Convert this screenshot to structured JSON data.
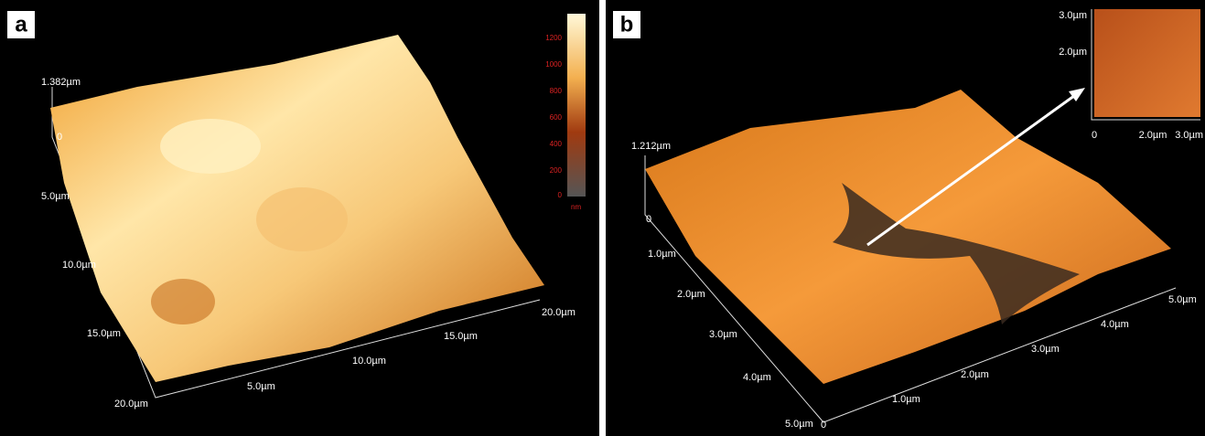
{
  "panels": [
    {
      "label": "a",
      "z_max": "1.382µm",
      "z_zero": "0",
      "left_axis": [
        "5.0µm",
        "10.0µm",
        "15.0µm",
        "20.0µm"
      ],
      "bottom_axis": [
        "5.0µm",
        "10.0µm",
        "15.0µm",
        "20.0µm"
      ],
      "colorbar": {
        "ticks": [
          "1200",
          "1000",
          "800",
          "600",
          "400",
          "200",
          "0"
        ],
        "unit": "nm"
      }
    },
    {
      "label": "b",
      "z_max": "1.212µm",
      "z_zero": "0",
      "left_axis": [
        "1.0µm",
        "2.0µm",
        "3.0µm",
        "4.0µm",
        "5.0µm"
      ],
      "bottom_axis": [
        "0",
        "1.0µm",
        "2.0µm",
        "3.0µm",
        "4.0µm",
        "5.0µm"
      ],
      "inset": {
        "left_axis": [
          "3.0µm",
          "2.0µm"
        ],
        "bottom_axis": [
          "0",
          "2.0µm",
          "3.0µm"
        ]
      }
    }
  ]
}
